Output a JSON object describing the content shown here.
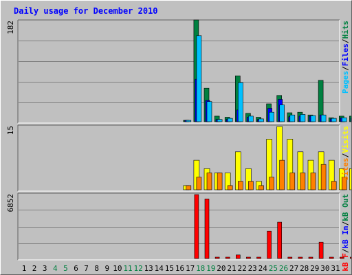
{
  "chart_data": {
    "type": "bar",
    "title": "Daily usage for December 2010",
    "categories": [
      "1",
      "2",
      "3",
      "4",
      "5",
      "6",
      "7",
      "8",
      "9",
      "10",
      "11",
      "12",
      "13",
      "14",
      "15",
      "16",
      "17",
      "18",
      "19",
      "20",
      "21",
      "22",
      "23",
      "24",
      "25",
      "26",
      "27",
      "28",
      "29",
      "30",
      "31"
    ],
    "weekend_days": [
      "4",
      "5",
      "11",
      "12",
      "18",
      "19",
      "25",
      "26"
    ],
    "panels": [
      {
        "name": "hits-files-pages",
        "y_tick_label": "182",
        "ylim": [
          0,
          182
        ],
        "legend": [
          {
            "text": "Pages",
            "color": "#00c0ff"
          },
          {
            "text": "/",
            "color": "#000000"
          },
          {
            "text": "Files",
            "color": "#0000ff"
          },
          {
            "text": "/",
            "color": "#000000"
          },
          {
            "text": "Hits",
            "color": "#008040"
          }
        ],
        "series": [
          {
            "name": "Hits",
            "color": "#008040",
            "values": [
              0,
              0,
              0,
              0,
              0,
              0,
              0,
              0,
              2,
              182,
              60,
              10,
              8,
              82,
              15,
              8,
              32,
              47,
              16,
              17,
              12,
              74,
              7,
              10,
              10,
              13,
              26,
              24,
              10,
              11,
              9
            ]
          },
          {
            "name": "Files",
            "color": "#0000ff",
            "values": [
              0,
              0,
              0,
              0,
              0,
              0,
              0,
              0,
              2,
              76,
              38,
              4,
              4,
              21,
              8,
              4,
              24,
              40,
              9,
              10,
              10,
              12,
              5,
              7,
              7,
              7,
              12,
              15,
              7,
              8,
              6
            ]
          },
          {
            "name": "Pages",
            "color": "#00c0ff",
            "values": [
              0,
              0,
              0,
              0,
              0,
              0,
              0,
              0,
              2,
              154,
              36,
              4,
              6,
              70,
              10,
              5,
              17,
              30,
              12,
              13,
              11,
              12,
              6,
              7,
              7,
              8,
              10,
              18,
              8,
              8,
              6
            ]
          }
        ]
      },
      {
        "name": "visits-sites",
        "y_tick_label": "15",
        "ylim": [
          0,
          15
        ],
        "legend": [
          {
            "text": "Sites",
            "color": "#ff8000"
          },
          {
            "text": "/",
            "color": "#000000"
          },
          {
            "text": "Visits",
            "color": "#ffff00"
          }
        ],
        "series": [
          {
            "name": "Visits",
            "color": "#ffff00",
            "values": [
              0,
              0,
              0,
              0,
              0,
              0,
              0,
              0,
              1,
              7,
              5,
              4,
              4,
              9,
              5,
              2,
              12,
              15,
              12,
              9,
              7,
              9,
              7,
              5,
              5,
              4,
              7,
              13,
              5,
              5,
              4
            ]
          },
          {
            "name": "Sites",
            "color": "#ff8000",
            "values": [
              0,
              0,
              0,
              0,
              0,
              0,
              0,
              0,
              1,
              3,
              4,
              4,
              1,
              2,
              2,
              1,
              3,
              7,
              4,
              4,
              4,
              6,
              2,
              3,
              2,
              2,
              4,
              2,
              2,
              3,
              2
            ]
          }
        ]
      },
      {
        "name": "kbytes",
        "y_tick_label": "6852",
        "ylim": [
          0,
          6852
        ],
        "legend": [
          {
            "text": "kB F",
            "color": "#ff0000"
          },
          {
            "text": "/",
            "color": "#000000"
          },
          {
            "text": "kB In",
            "color": "#0000ff"
          },
          {
            "text": "/",
            "color": "#000000"
          },
          {
            "text": "kB Out",
            "color": "#008040"
          }
        ],
        "series": [
          {
            "name": "kB F",
            "color": "#ff0000",
            "values": [
              0,
              0,
              0,
              0,
              0,
              0,
              0,
              0,
              0,
              6852,
              6380,
              100,
              120,
              380,
              100,
              80,
              2930,
              3900,
              120,
              130,
              140,
              1750,
              100,
              100,
              80,
              110,
              520,
              680,
              130,
              120,
              100
            ]
          }
        ]
      }
    ]
  }
}
